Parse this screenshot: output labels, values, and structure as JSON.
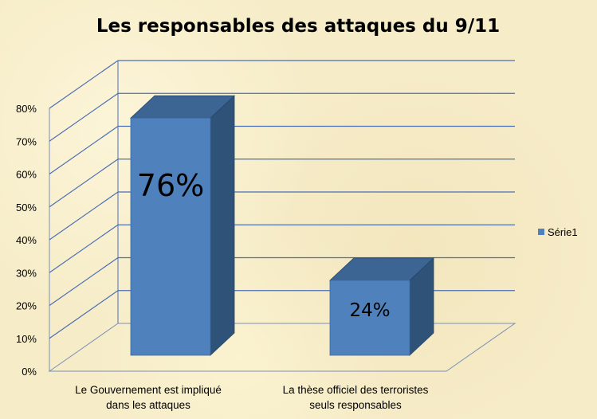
{
  "chart_data": {
    "type": "bar",
    "title": "Les responsables des attaques du 9/11",
    "categories": [
      [
        "Le Gouvernement est impliqué",
        "dans les attaques"
      ],
      [
        "La thèse officiel des terroristes",
        "seuls responsables"
      ]
    ],
    "series": [
      {
        "name": "Série1",
        "values": [
          76,
          24
        ],
        "labels": [
          "76%",
          "24%"
        ]
      }
    ],
    "yticks": [
      "0%",
      "10%",
      "20%",
      "30%",
      "40%",
      "50%",
      "60%",
      "70%",
      "80%"
    ],
    "ylim": [
      0,
      80
    ],
    "grid": true,
    "legend": "right",
    "colors": {
      "bar_front": "#4f81bd",
      "bar_side": "#2f5278",
      "bar_top": "#3d6594",
      "grid": "#4a6fb5"
    }
  }
}
